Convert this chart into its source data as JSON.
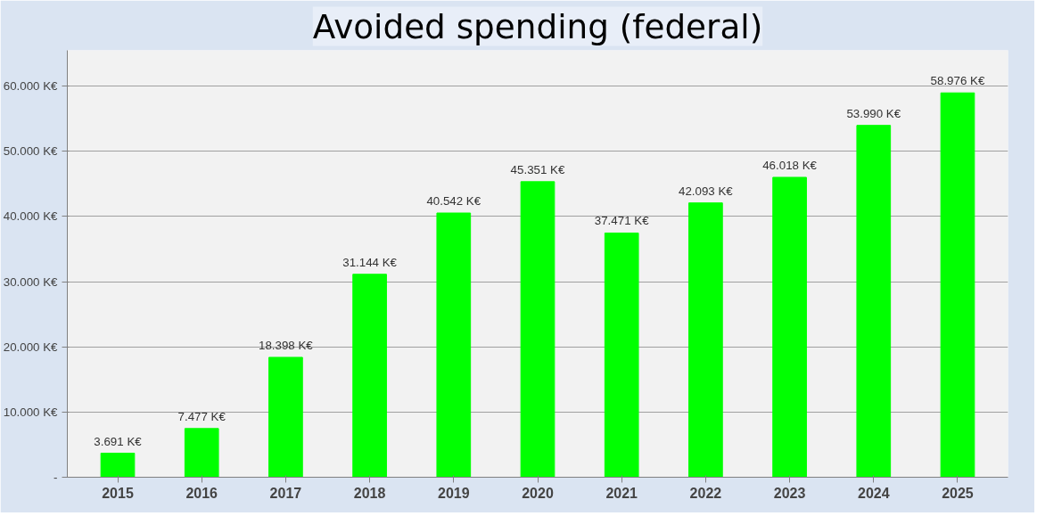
{
  "chart_data": {
    "type": "bar",
    "title": "Avoided spending (federal)",
    "categories": [
      "2015",
      "2016",
      "2017",
      "2018",
      "2019",
      "2020",
      "2021",
      "2022",
      "2023",
      "2024",
      "2025"
    ],
    "values": [
      3691,
      7477,
      18398,
      31144,
      40542,
      45351,
      37471,
      42093,
      46018,
      53990,
      58976
    ],
    "value_labels": [
      "3.691 K€",
      "7.477 K€",
      "18.398 K€",
      "31.144 K€",
      "40.542 K€",
      "45.351 K€",
      "37.471 K€",
      "42.093 K€",
      "46.018 K€",
      "53.990 K€",
      "58.976 K€"
    ],
    "color": "#00ff00",
    "ylim": [
      0,
      65500
    ],
    "yticks": [
      {
        "value": 0,
        "label": "-"
      },
      {
        "value": 10000,
        "label": "10.000 K€"
      },
      {
        "value": 20000,
        "label": "20.000 K€"
      },
      {
        "value": 30000,
        "label": "30.000 K€"
      },
      {
        "value": 40000,
        "label": "40.000 K€"
      },
      {
        "value": 50000,
        "label": "50.000 K€"
      },
      {
        "value": 60000,
        "label": "60.000 K€"
      }
    ],
    "grid": "y"
  }
}
